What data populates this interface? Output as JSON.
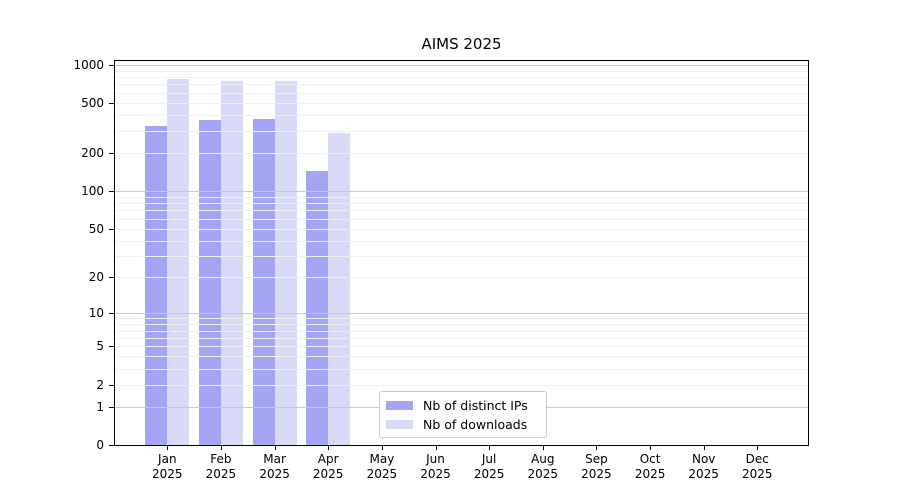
{
  "chart_data": {
    "type": "bar",
    "title": "AIMS 2025",
    "yscale": "log1p",
    "ylim": [
      0,
      1000
    ],
    "ytick_values": [
      0,
      1,
      2,
      5,
      10,
      20,
      50,
      100,
      200,
      500,
      1000
    ],
    "ytick_labels": [
      "0",
      "1",
      "2",
      "5",
      "10",
      "20",
      "50",
      "100",
      "200",
      "500",
      "1000"
    ],
    "grid": "on",
    "categories": [
      "Jan",
      "Feb",
      "Mar",
      "Apr",
      "May",
      "Jun",
      "Jul",
      "Aug",
      "Sep",
      "Oct",
      "Nov",
      "Dec"
    ],
    "year": "2025",
    "legend_position": "bottom-center",
    "series": [
      {
        "name": "Nb of distinct IPs",
        "color": "#a4a4f4",
        "values": [
          330,
          365,
          370,
          145,
          null,
          null,
          null,
          null,
          null,
          null,
          null,
          null
        ]
      },
      {
        "name": "Nb of downloads",
        "color": "#d9d9f8",
        "values": [
          775,
          745,
          740,
          290,
          null,
          null,
          null,
          null,
          null,
          null,
          null,
          null
        ]
      }
    ]
  }
}
